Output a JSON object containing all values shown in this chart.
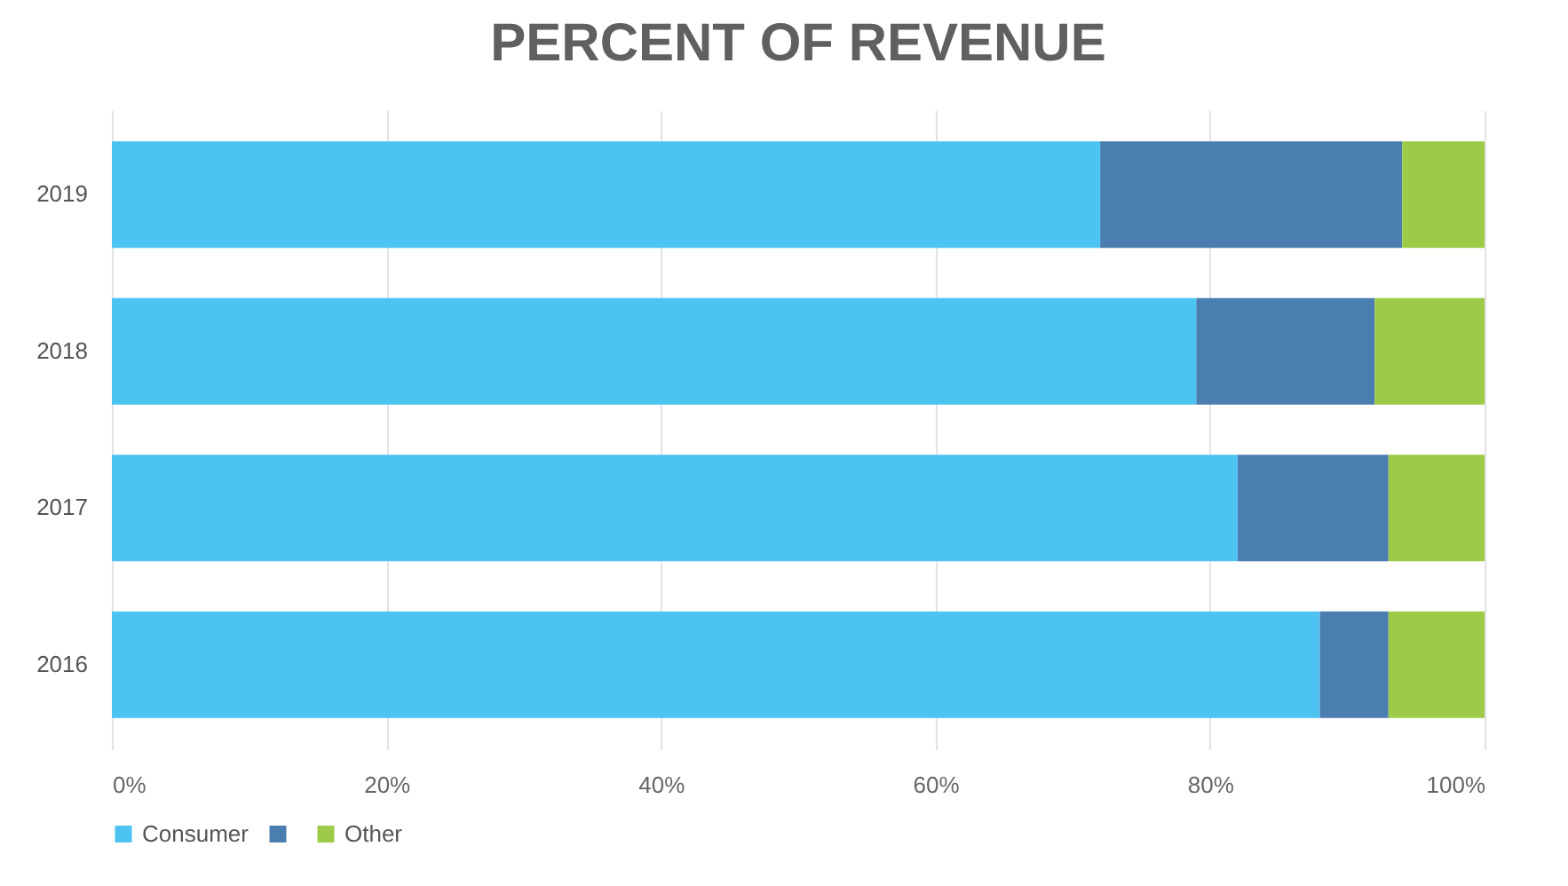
{
  "chart_data": {
    "type": "bar",
    "title": "PERCENT OF REVENUE",
    "orientation": "horizontal",
    "stacked": true,
    "categories": [
      "2019",
      "2018",
      "2017",
      "2016"
    ],
    "series": [
      {
        "name": "Consumer",
        "color": "#4cc3f1",
        "values": [
          72,
          79,
          82,
          88
        ]
      },
      {
        "color": "#4a7eb0",
        "values": [
          22,
          13,
          11,
          5
        ]
      },
      {
        "name": "Other",
        "color": "#9dcb47",
        "values": [
          6,
          8,
          7,
          7
        ]
      }
    ],
    "xlim": [
      0,
      100
    ],
    "xticks": [
      {
        "value": 0,
        "label": "0%"
      },
      {
        "value": 20,
        "label": "20%"
      },
      {
        "value": 40,
        "label": "40%"
      },
      {
        "value": 60,
        "label": "60%"
      },
      {
        "value": 80,
        "label": "80%"
      },
      {
        "value": 100,
        "label": "100%"
      }
    ],
    "grid": "x",
    "legend": "bottom"
  }
}
